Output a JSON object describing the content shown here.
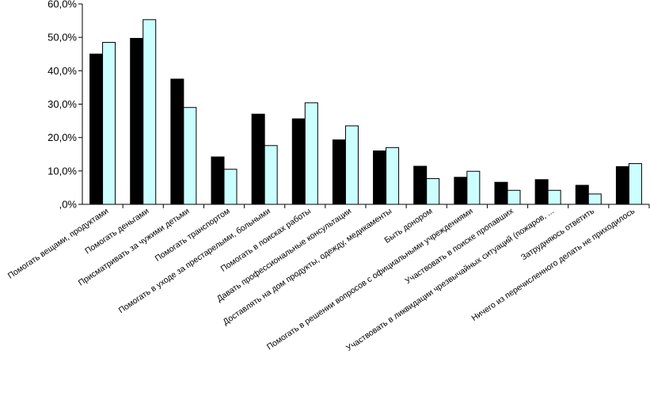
{
  "chart_data": {
    "type": "bar",
    "title": "",
    "xlabel": "",
    "ylabel": "",
    "ylim": [
      0,
      60
    ],
    "ytick_labels": [
      ",0%",
      "10,0%",
      "20,0%",
      "30,0%",
      "40,0%",
      "50,0%",
      "60,0%"
    ],
    "ytick_values": [
      0,
      10,
      20,
      30,
      40,
      50,
      60
    ],
    "grid": false,
    "legend": "none",
    "categories": [
      "Помогать вещами, продуктами",
      "Помогать деньгами",
      "Присматривать за чужими детьми",
      "Помогать транспортом",
      "Помогать в уходе за престарелыми, больными",
      "Помогать в поисках работы",
      "Давать профессиональные консультации",
      "Доставлять на дом продукты, одежду, медикаменты",
      "Быть донором",
      "Помогать в решении вопросов с официальными учреждениями",
      "Участвовать в поиске пропавших",
      "Участвовать в ликвидации чрезвычайных ситуаций (пожаров, ...",
      "Затрудняюсь ответить",
      "Ничего из перечисленного делать не приходилось"
    ],
    "series": [
      {
        "color": "#000000",
        "values": [
          45.0,
          49.7,
          37.5,
          14.2,
          27.0,
          25.6,
          19.3,
          16.0,
          11.4,
          8.1,
          6.6,
          7.4,
          5.7,
          11.3
        ]
      },
      {
        "color": "#ccffff",
        "values": [
          48.5,
          55.3,
          29.0,
          10.5,
          17.6,
          30.4,
          23.5,
          17.0,
          7.7,
          9.9,
          4.2,
          4.2,
          3.1,
          12.2
        ]
      }
    ]
  }
}
